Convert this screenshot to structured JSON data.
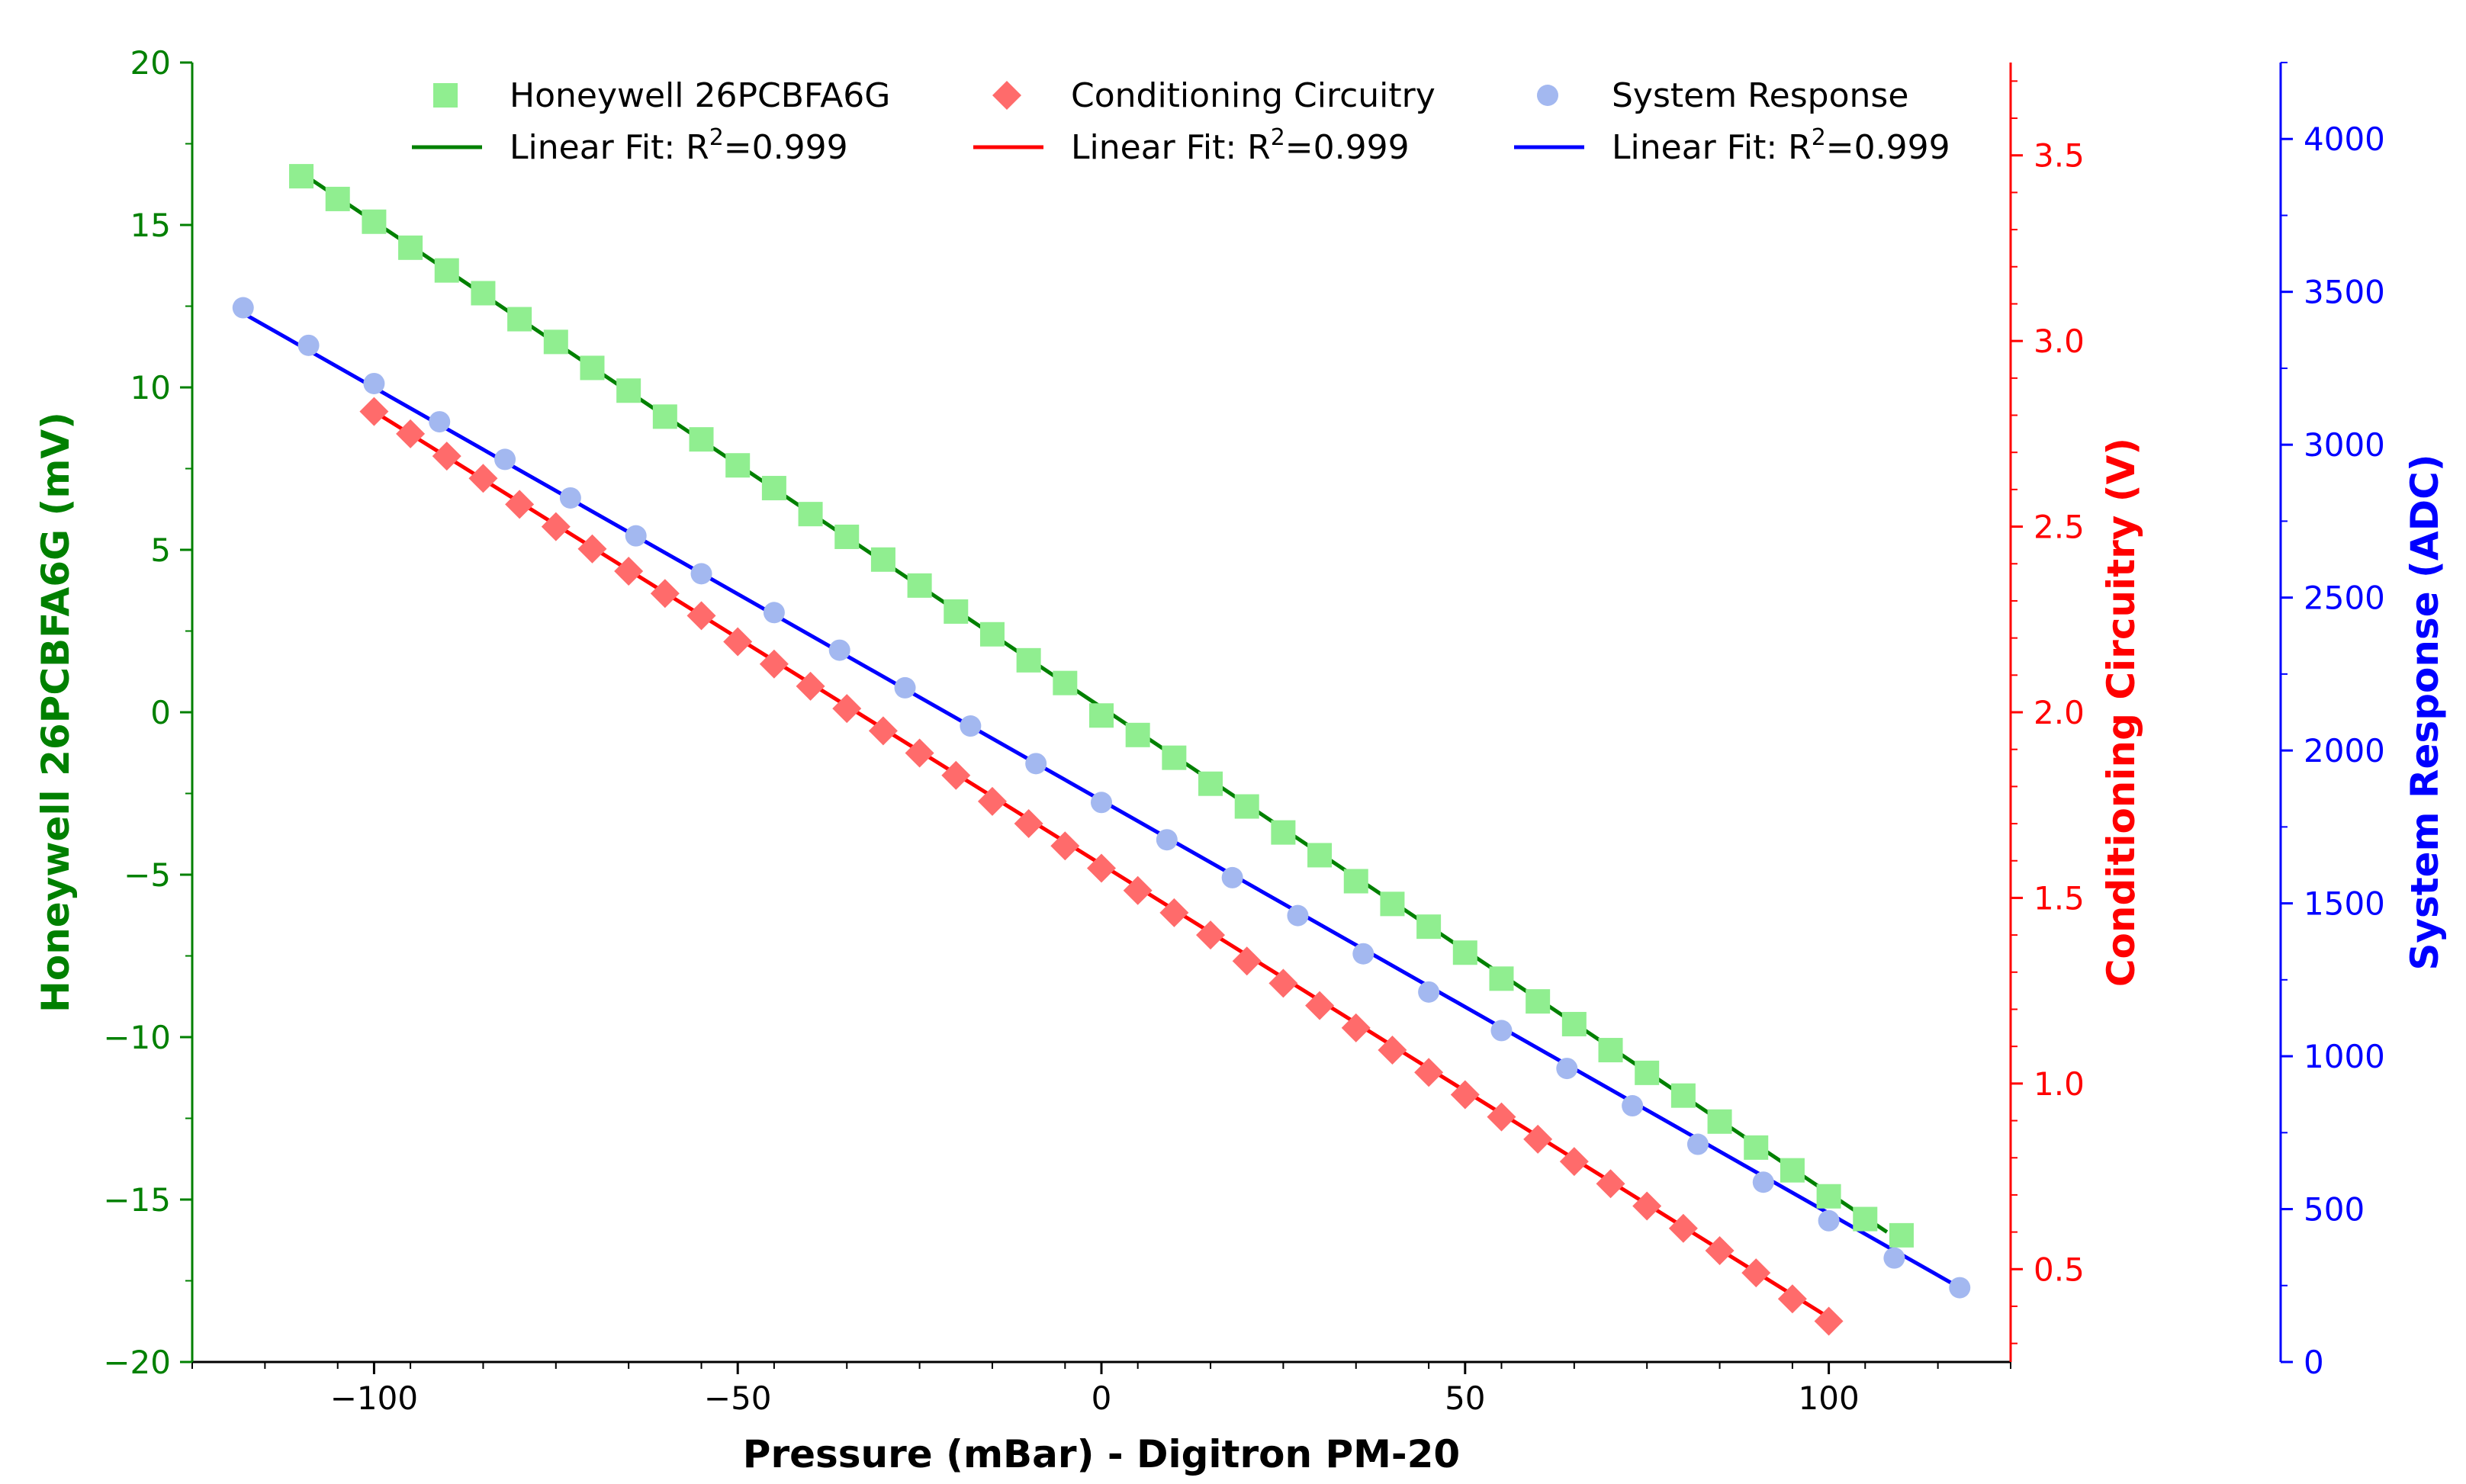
{
  "chart_data": {
    "type": "scatter",
    "title": "",
    "xlabel": "Pressure (mBar) - Digitron PM-20",
    "xlim": [
      -125,
      125
    ],
    "x_ticks": [
      -100,
      -50,
      0,
      50,
      100
    ],
    "x_tick_labels": [
      "−100",
      "−50",
      "0",
      "50",
      "100"
    ],
    "legend_location": "top",
    "axes": [
      {
        "id": "left",
        "label": "Honeywell 26PCBFA6G (mV)",
        "color": "#008000",
        "ylim": [
          -20,
          20
        ],
        "ticks": [
          -20,
          -15,
          -10,
          -5,
          0,
          5,
          10,
          15,
          20
        ],
        "tick_labels": [
          "−20",
          "−15",
          "−10",
          "−5",
          "0",
          "5",
          "10",
          "15",
          "20"
        ]
      },
      {
        "id": "right1",
        "label": "Conditioning Circuitry (V)",
        "color": "#ff0000",
        "ylim": [
          0.25,
          3.75
        ],
        "ticks": [
          0.5,
          1.0,
          1.5,
          2.0,
          2.5,
          3.0,
          3.5
        ],
        "tick_labels": [
          "0.5",
          "1.0",
          "1.5",
          "2.0",
          "2.5",
          "3.0",
          "3.5"
        ]
      },
      {
        "id": "right2",
        "label": "System Response (ADC)",
        "color": "#0000ff",
        "ylim": [
          0,
          4250
        ],
        "ticks": [
          0,
          500,
          1000,
          1500,
          2000,
          2500,
          3000,
          3500,
          4000
        ],
        "tick_labels": [
          "0",
          "500",
          "1000",
          "1500",
          "2000",
          "2500",
          "3000",
          "3500",
          "4000"
        ]
      }
    ],
    "series": [
      {
        "name": "Honeywell 26PCBFA6G",
        "axis": "left",
        "marker": "square",
        "color": "#90ee90",
        "x": [
          -110,
          -105,
          -100,
          -95,
          -90,
          -85,
          -80,
          -75,
          -70,
          -65,
          -60,
          -55,
          -50,
          -45,
          -40,
          -35,
          -30,
          -25,
          -20,
          -15,
          -10,
          -5,
          0,
          5,
          10,
          15,
          20,
          25,
          30,
          35,
          40,
          45,
          50,
          55,
          60,
          65,
          70,
          75,
          80,
          85,
          90,
          95,
          100,
          105,
          110
        ],
        "y": [
          16.5,
          15.8,
          15.1,
          14.3,
          13.6,
          12.9,
          12.1,
          11.4,
          10.6,
          9.9,
          9.1,
          8.4,
          7.6,
          6.9,
          6.1,
          5.4,
          4.7,
          3.9,
          3.1,
          2.4,
          1.6,
          0.9,
          -0.1,
          -0.7,
          -1.4,
          -2.2,
          -2.9,
          -3.7,
          -4.4,
          -5.2,
          -5.9,
          -6.6,
          -7.4,
          -8.2,
          -8.9,
          -9.6,
          -10.4,
          -11.1,
          -11.8,
          -12.6,
          -13.4,
          -14.1,
          -14.9,
          -15.6,
          -16.1
        ]
      },
      {
        "name": "Conditioning Circuitry",
        "axis": "right1",
        "marker": "diamond",
        "color": "#ff6b6b",
        "x": [
          -100,
          -95,
          -90,
          -85,
          -80,
          -75,
          -70,
          -65,
          -60,
          -55,
          -50,
          -45,
          -40,
          -35,
          -30,
          -25,
          -20,
          -15,
          -10,
          -5,
          0,
          5,
          10,
          15,
          20,
          25,
          30,
          35,
          40,
          45,
          50,
          55,
          60,
          65,
          70,
          75,
          80,
          85,
          90,
          95,
          100
        ],
        "y": [
          2.81,
          2.75,
          2.69,
          2.63,
          2.56,
          2.5,
          2.44,
          2.38,
          2.32,
          2.26,
          2.19,
          2.13,
          2.07,
          2.01,
          1.95,
          1.89,
          1.83,
          1.76,
          1.7,
          1.64,
          1.58,
          1.52,
          1.46,
          1.4,
          1.33,
          1.27,
          1.21,
          1.15,
          1.09,
          1.03,
          0.97,
          0.91,
          0.85,
          0.79,
          0.73,
          0.67,
          0.61,
          0.55,
          0.49,
          0.42,
          0.36
        ]
      },
      {
        "name": "System Response",
        "axis": "right2",
        "marker": "circle",
        "color": "#a3b8f0",
        "x": [
          -118,
          -109,
          -100,
          -91,
          -82,
          -73,
          -64,
          -55,
          -45,
          -36,
          -27,
          -18,
          -9,
          0,
          9,
          18,
          27,
          36,
          45,
          55,
          64,
          73,
          82,
          91,
          100,
          109,
          118
        ],
        "y": [
          3448,
          3325,
          3200,
          3075,
          2952,
          2826,
          2702,
          2578,
          2451,
          2328,
          2205,
          2080,
          1957,
          1830,
          1708,
          1584,
          1460,
          1335,
          1210,
          1084,
          960,
          838,
          712,
          588,
          462,
          340,
          243
        ]
      }
    ],
    "fits": [
      {
        "name": "Linear Fit: R²=0.999",
        "label_main": "Linear Fit: R",
        "label_sup": "2",
        "label_tail": "=0.999",
        "axis": "left",
        "color": "#008000",
        "x": [
          -110,
          108
        ],
        "y": [
          16.6,
          -16.0
        ]
      },
      {
        "name": "Linear Fit: R²=0.999",
        "label_main": "Linear Fit: R",
        "label_sup": "2",
        "label_tail": "=0.999",
        "axis": "right1",
        "color": "#ff0000",
        "x": [
          -100,
          100
        ],
        "y": [
          2.81,
          0.37
        ]
      },
      {
        "name": "Linear Fit: R²=0.999",
        "label_main": "Linear Fit: R",
        "label_sup": "2",
        "label_tail": "=0.999",
        "axis": "right2",
        "color": "#0000ff",
        "x": [
          -118,
          118
        ],
        "y": [
          3430,
          243
        ]
      }
    ]
  }
}
